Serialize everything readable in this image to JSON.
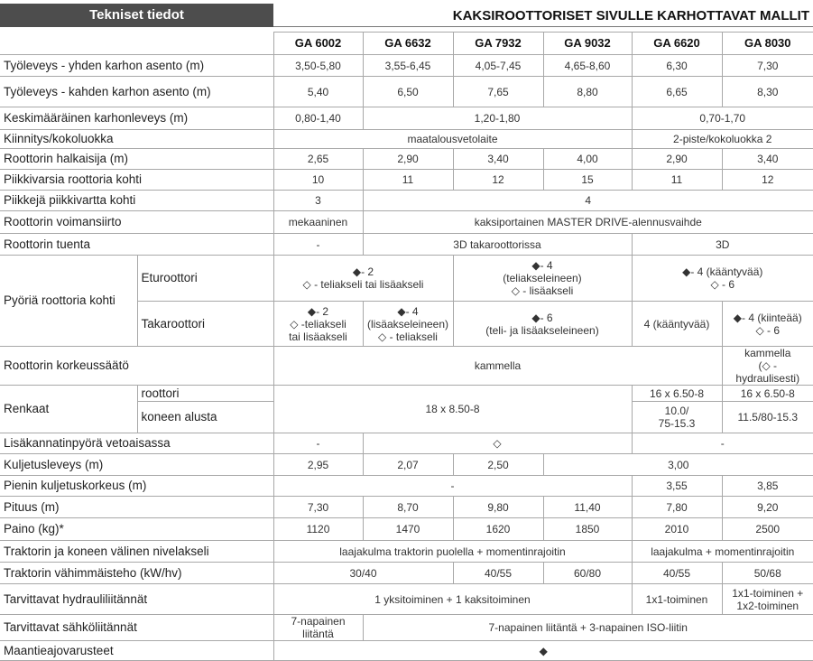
{
  "header": {
    "left": "Tekniset tiedot",
    "title": "KAKSIROOTTORISET SIVULLE KARHOTTAVAT MALLIT"
  },
  "table": {
    "models": [
      "GA 6002",
      "GA 6632",
      "GA 7932",
      "GA 9032",
      "GA 6620",
      "GA 8030"
    ],
    "rows": [
      {
        "label": "Työleveys - yhden karhon asento (m)",
        "cells": [
          "3,50-5,80",
          "3,55-6,45",
          "4,05-7,45",
          "4,65-8,60",
          "6,30",
          "7,30"
        ]
      },
      {
        "label": "Työleveys - kahden karhon asento (m)",
        "cells": [
          "5,40",
          "6,50",
          "7,65",
          "8,80",
          "6,65",
          "8,30"
        ]
      },
      {
        "label": "Keskimääräinen karhonleveys (m)",
        "cells": [
          "0,80-1,40",
          "1,20-1,80",
          "0,70-1,70"
        ]
      },
      {
        "label": "Kiinnitys/kokoluokka",
        "cells": [
          "maatalousvetolaite",
          "2-piste/kokoluokka 2"
        ]
      },
      {
        "label": "Roottorin halkaisija (m)",
        "cells": [
          "2,65",
          "2,90",
          "3,40",
          "4,00",
          "2,90",
          "3,40"
        ]
      },
      {
        "label": "Piikkivarsia roottoria kohti",
        "cells": [
          "10",
          "11",
          "12",
          "15",
          "11",
          "12"
        ]
      },
      {
        "label": "Piikkejä piikkivartta kohti",
        "cells": [
          "3",
          "4"
        ]
      },
      {
        "label": "Roottorin voimansiirto",
        "cells": [
          "mekaaninen",
          "kaksiportainen MASTER DRIVE-alennusvaihde"
        ]
      },
      {
        "label": "Roottorin tuenta",
        "cells": [
          "-",
          "3D takaroottorissa",
          "3D"
        ]
      },
      {
        "label": "Pyöriä roottoria kohti",
        "sublabel": "Eturoottori",
        "cells": [
          [
            "◆- 2",
            "◇ - teliakseli tai lisäakseli"
          ],
          [
            "◆- 4",
            "(teliakseleineen)",
            "◇ - lisäakseli"
          ],
          [
            "◆- 4 (kääntyvää)",
            "◇ - 6"
          ]
        ]
      },
      {
        "sublabel": "Takaroottori",
        "cells": [
          [
            "◆- 2",
            "◇ -teliakseli",
            "tai lisäakseli"
          ],
          [
            "◆- 4",
            "(lisäakseleineen)",
            "◇ - teliakseli"
          ],
          [
            "◆- 6",
            "(teli- ja lisäakseleineen)"
          ],
          "4 (kääntyvää)",
          [
            "◆- 4 (kiinteää)",
            "◇ - 6"
          ]
        ]
      },
      {
        "label": "Roottorin korkeussäätö",
        "cells": [
          "kammella",
          [
            "kammella",
            "(◇ - hydraulisesti)"
          ]
        ]
      },
      {
        "label": "Renkaat",
        "sublabel": "roottori",
        "cells": [
          "18 x 8.50-8",
          "16 x 6.50-8",
          "16 x 6.50-8"
        ]
      },
      {
        "sublabel": "koneen alusta",
        "cells": [
          [
            "10.0/",
            "75-15.3"
          ],
          "11.5/80-15.3"
        ]
      },
      {
        "label": "Lisäkannatinpyörä vetoaisassa",
        "cells": [
          "-",
          "◇",
          "-"
        ]
      },
      {
        "label": "Kuljetusleveys (m)",
        "cells": [
          "2,95",
          "2,07",
          "2,50",
          "3,00"
        ]
      },
      {
        "label": "Pienin kuljetuskorkeus (m)",
        "cells": [
          "-",
          "3,55",
          "3,85"
        ]
      },
      {
        "label": "Pituus (m)",
        "cells": [
          "7,30",
          "8,70",
          "9,80",
          "11,40",
          "7,80",
          "9,20"
        ]
      },
      {
        "label": "Paino (kg)*",
        "cells": [
          "1120",
          "1470",
          "1620",
          "1850",
          "2010",
          "2500"
        ]
      },
      {
        "label": "Traktorin ja koneen välinen nivelakseli",
        "cells": [
          "laajakulma traktorin puolella + momentinrajoitin",
          "laajakulma + momentinrajoitin"
        ]
      },
      {
        "label": "Traktorin vähimmäisteho (kW/hv)",
        "cells": [
          "30/40",
          "40/55",
          "60/80",
          "40/55",
          "50/68"
        ]
      },
      {
        "label": "Tarvittavat hydrauliliitännät",
        "cells": [
          "1 yksitoiminen + 1 kaksitoiminen",
          "1x1-toiminen",
          [
            "1x1-toiminen +",
            "1x2-toiminen"
          ]
        ]
      },
      {
        "label": "Tarvittavat sähköliitännät",
        "cells": [
          "7-napainen liitäntä",
          "7-napainen liitäntä + 3-napainen ISO-liitin"
        ]
      },
      {
        "label": "Maantieajovarusteet",
        "cells": [
          "◆"
        ]
      }
    ]
  }
}
